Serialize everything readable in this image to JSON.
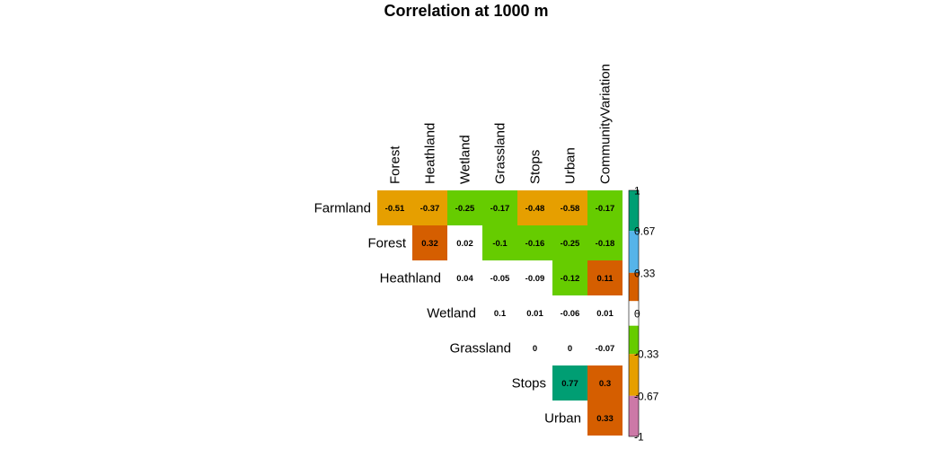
{
  "chart_data": {
    "type": "heatmap",
    "title": "Correlation at 1000 m",
    "rows": [
      "Farmland",
      "Forest",
      "Heathland",
      "Wetland",
      "Grassland",
      "Stops",
      "Urban"
    ],
    "columns": [
      "Forest",
      "Heathland",
      "Wetland",
      "Grassland",
      "Stops",
      "Urban",
      "CommunityVariation"
    ],
    "values": [
      [
        -0.51,
        -0.37,
        -0.25,
        -0.17,
        -0.48,
        -0.58,
        -0.17
      ],
      [
        null,
        0.32,
        0.02,
        -0.1,
        -0.16,
        -0.25,
        -0.18
      ],
      [
        null,
        null,
        0.04,
        -0.05,
        -0.09,
        -0.12,
        0.11
      ],
      [
        null,
        null,
        null,
        0.1,
        0.01,
        -0.06,
        0.01
      ],
      [
        null,
        null,
        null,
        null,
        0,
        0,
        -0.07
      ],
      [
        null,
        null,
        null,
        null,
        null,
        0.77,
        0.3
      ],
      [
        null,
        null,
        null,
        null,
        null,
        null,
        0.33
      ]
    ],
    "labels": [
      [
        "-0.51",
        "-0.37",
        "-0.25",
        "-0.17",
        "-0.48",
        "-0.58",
        "-0.17"
      ],
      [
        null,
        "0.32",
        "0.02",
        "-0.1",
        "-0.16",
        "-0.25",
        "-0.18"
      ],
      [
        null,
        null,
        "0.04",
        "-0.05",
        "-0.09",
        "-0.12",
        "0.11"
      ],
      [
        null,
        null,
        null,
        "0.1",
        "0.01",
        "-0.06",
        "0.01"
      ],
      [
        null,
        null,
        null,
        null,
        "0",
        "0",
        "-0.07"
      ],
      [
        null,
        null,
        null,
        null,
        null,
        "0.77",
        "0.3"
      ],
      [
        null,
        null,
        null,
        null,
        null,
        null,
        "0.33"
      ]
    ],
    "color_scale": {
      "range": [
        -1,
        1
      ],
      "ticks": [
        1,
        0.67,
        0.33,
        0,
        -0.33,
        -0.67,
        -1
      ],
      "tick_labels": [
        "1",
        "0.67",
        "0.33",
        "0",
        "-0.33",
        "-0.67",
        "-1"
      ],
      "bins": [
        {
          "from": 0.67,
          "to": 1,
          "color": "#009E73"
        },
        {
          "from": 0.33,
          "to": 0.67,
          "color": "#56B4E9"
        },
        {
          "from": 0.1,
          "to": 0.33,
          "color": "#D55E00"
        },
        {
          "from": -0.1,
          "to": 0.1,
          "color": "#FFFFFF"
        },
        {
          "from": -0.33,
          "to": -0.1,
          "color": "#66CC00"
        },
        {
          "from": -0.67,
          "to": -0.33,
          "color": "#E69F00"
        },
        {
          "from": -1,
          "to": -0.67,
          "color": "#CC79A7"
        }
      ]
    },
    "legend_position": "right"
  }
}
